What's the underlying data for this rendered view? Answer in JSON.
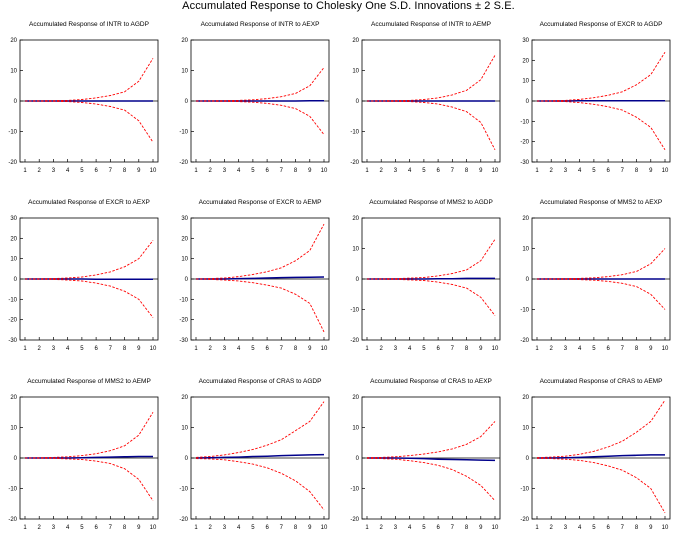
{
  "title": "Accumulated Response to Cholesky One S.D. Innovations ± 2 S.E.",
  "colors": {
    "response": "#00008b",
    "band": "#ff0000",
    "zero": "#000000",
    "frame": "#000000"
  },
  "chart_data": [
    {
      "type": "line",
      "title": "Accumulated Response of INTR to AGDP",
      "x": [
        1,
        2,
        3,
        4,
        5,
        6,
        7,
        8,
        9,
        10
      ],
      "ylim": [
        -20,
        20
      ],
      "yticks": [
        -20,
        -10,
        0,
        10,
        20
      ],
      "series": [
        {
          "role": "response",
          "values": [
            0,
            0,
            0,
            0,
            0,
            0,
            0,
            0,
            0,
            0
          ]
        },
        {
          "role": "upper",
          "values": [
            0,
            0.05,
            0.1,
            0.2,
            0.5,
            1.0,
            1.8,
            3.0,
            6.5,
            14
          ]
        },
        {
          "role": "lower",
          "values": [
            0,
            -0.05,
            -0.1,
            -0.2,
            -0.5,
            -1.0,
            -1.8,
            -3.0,
            -6.5,
            -13.5
          ]
        }
      ]
    },
    {
      "type": "line",
      "title": "Accumulated Response of INTR to AEXP",
      "x": [
        1,
        2,
        3,
        4,
        5,
        6,
        7,
        8,
        9,
        10
      ],
      "ylim": [
        -20,
        20
      ],
      "yticks": [
        -20,
        -10,
        0,
        10,
        20
      ],
      "series": [
        {
          "role": "response",
          "values": [
            0,
            0,
            0,
            0,
            0,
            0,
            0,
            0,
            0.1,
            0.1
          ]
        },
        {
          "role": "upper",
          "values": [
            0,
            0.05,
            0.1,
            0.2,
            0.4,
            0.8,
            1.4,
            2.5,
            5.0,
            11
          ]
        },
        {
          "role": "lower",
          "values": [
            0,
            -0.05,
            -0.1,
            -0.2,
            -0.4,
            -0.8,
            -1.4,
            -2.5,
            -5.0,
            -11
          ]
        }
      ]
    },
    {
      "type": "line",
      "title": "Accumulated Response of INTR to AEMP",
      "x": [
        1,
        2,
        3,
        4,
        5,
        6,
        7,
        8,
        9,
        10
      ],
      "ylim": [
        -20,
        20
      ],
      "yticks": [
        -20,
        -10,
        0,
        10,
        20
      ],
      "series": [
        {
          "role": "response",
          "values": [
            0,
            0,
            0,
            0,
            0,
            0,
            0,
            0,
            0,
            0
          ]
        },
        {
          "role": "upper",
          "values": [
            0,
            0.05,
            0.1,
            0.2,
            0.5,
            1.0,
            2.0,
            3.5,
            7.0,
            15
          ]
        },
        {
          "role": "lower",
          "values": [
            0,
            -0.05,
            -0.1,
            -0.2,
            -0.5,
            -1.0,
            -2.0,
            -3.5,
            -7.0,
            -16
          ]
        }
      ]
    },
    {
      "type": "line",
      "title": "Accumulated Response of EXCR to AGDP",
      "x": [
        1,
        2,
        3,
        4,
        5,
        6,
        7,
        8,
        9,
        10
      ],
      "ylim": [
        -30,
        30
      ],
      "yticks": [
        -30,
        -20,
        -10,
        0,
        10,
        20,
        30
      ],
      "series": [
        {
          "role": "response",
          "values": [
            0,
            0,
            0,
            0.1,
            0.1,
            0.1,
            0.1,
            0.1,
            0.1,
            0.1
          ]
        },
        {
          "role": "upper",
          "values": [
            0,
            0.1,
            0.3,
            0.8,
            1.6,
            2.8,
            4.5,
            8.0,
            13,
            24
          ]
        },
        {
          "role": "lower",
          "values": [
            0,
            -0.1,
            -0.3,
            -0.8,
            -1.6,
            -2.8,
            -4.5,
            -8.0,
            -13,
            -24
          ]
        }
      ]
    },
    {
      "type": "line",
      "title": "Accumulated Response of EXCR to AEXP",
      "x": [
        1,
        2,
        3,
        4,
        5,
        6,
        7,
        8,
        9,
        10
      ],
      "ylim": [
        -30,
        30
      ],
      "yticks": [
        -30,
        -20,
        -10,
        0,
        10,
        20,
        30
      ],
      "series": [
        {
          "role": "response",
          "values": [
            0,
            0,
            0,
            0,
            0,
            -0.1,
            -0.1,
            -0.1,
            -0.1,
            -0.1
          ]
        },
        {
          "role": "upper",
          "values": [
            0,
            0.1,
            0.2,
            0.5,
            1.0,
            2.0,
            3.5,
            6.0,
            10,
            19
          ]
        },
        {
          "role": "lower",
          "values": [
            0,
            -0.1,
            -0.2,
            -0.5,
            -1.0,
            -2.0,
            -3.5,
            -6.0,
            -10,
            -19
          ]
        }
      ]
    },
    {
      "type": "line",
      "title": "Accumulated Response of EXCR to AEMP",
      "x": [
        1,
        2,
        3,
        4,
        5,
        6,
        7,
        8,
        9,
        10
      ],
      "ylim": [
        -30,
        30
      ],
      "yticks": [
        -30,
        -20,
        -10,
        0,
        10,
        20,
        30
      ],
      "series": [
        {
          "role": "response",
          "values": [
            0,
            0,
            0,
            0.2,
            0.3,
            0.5,
            0.7,
            0.8,
            0.9,
            1.0
          ]
        },
        {
          "role": "upper",
          "values": [
            0,
            0.2,
            0.5,
            1.2,
            2.2,
            3.6,
            5.5,
            9.0,
            14,
            27
          ]
        },
        {
          "role": "lower",
          "values": [
            0,
            -0.2,
            -0.5,
            -1.0,
            -1.8,
            -3.0,
            -4.5,
            -7.5,
            -12,
            -26
          ]
        }
      ]
    },
    {
      "type": "line",
      "title": "Accumulated Response of MMS2 to AGDP",
      "x": [
        1,
        2,
        3,
        4,
        5,
        6,
        7,
        8,
        9,
        10
      ],
      "ylim": [
        -20,
        20
      ],
      "yticks": [
        -20,
        -10,
        0,
        10,
        20
      ],
      "series": [
        {
          "role": "response",
          "values": [
            0,
            0,
            0,
            0,
            0,
            0.1,
            0.1,
            0.2,
            0.2,
            0.2
          ]
        },
        {
          "role": "upper",
          "values": [
            0,
            0.05,
            0.1,
            0.3,
            0.5,
            1.0,
            1.8,
            3.0,
            6.0,
            13
          ]
        },
        {
          "role": "lower",
          "values": [
            0,
            -0.05,
            -0.1,
            -0.3,
            -0.5,
            -1.0,
            -1.8,
            -3.0,
            -6.0,
            -12
          ]
        }
      ]
    },
    {
      "type": "line",
      "title": "Accumulated Response of MMS2 to AEXP",
      "x": [
        1,
        2,
        3,
        4,
        5,
        6,
        7,
        8,
        9,
        10
      ],
      "ylim": [
        -20,
        20
      ],
      "yticks": [
        -20,
        -10,
        0,
        10,
        20
      ],
      "series": [
        {
          "role": "response",
          "values": [
            0,
            0,
            0,
            0,
            0,
            0,
            0,
            0,
            0,
            0
          ]
        },
        {
          "role": "upper",
          "values": [
            0,
            0.05,
            0.1,
            0.2,
            0.4,
            0.8,
            1.4,
            2.5,
            5.0,
            10
          ]
        },
        {
          "role": "lower",
          "values": [
            0,
            -0.05,
            -0.1,
            -0.2,
            -0.4,
            -0.8,
            -1.4,
            -2.5,
            -5.0,
            -10
          ]
        }
      ]
    },
    {
      "type": "line",
      "title": "Accumulated Response of MMS2 to AEMP",
      "x": [
        1,
        2,
        3,
        4,
        5,
        6,
        7,
        8,
        9,
        10
      ],
      "ylim": [
        -20,
        20
      ],
      "yticks": [
        -20,
        -10,
        0,
        10,
        20
      ],
      "series": [
        {
          "role": "response",
          "values": [
            0,
            0,
            0,
            0,
            0.1,
            0.2,
            0.3,
            0.4,
            0.5,
            0.5
          ]
        },
        {
          "role": "upper",
          "values": [
            0,
            0.05,
            0.2,
            0.4,
            0.8,
            1.4,
            2.4,
            4.0,
            7.5,
            15
          ]
        },
        {
          "role": "lower",
          "values": [
            0,
            -0.05,
            -0.1,
            -0.3,
            -0.5,
            -1.0,
            -1.8,
            -3.5,
            -7.0,
            -14
          ]
        }
      ]
    },
    {
      "type": "line",
      "title": "Accumulated Response of CRAS to AGDP",
      "x": [
        1,
        2,
        3,
        4,
        5,
        6,
        7,
        8,
        9,
        10
      ],
      "ylim": [
        -20,
        20
      ],
      "yticks": [
        -20,
        -10,
        0,
        10,
        20
      ],
      "series": [
        {
          "role": "response",
          "values": [
            0,
            0.1,
            0.2,
            0.3,
            0.5,
            0.6,
            0.8,
            0.9,
            1.0,
            1.1
          ]
        },
        {
          "role": "upper",
          "values": [
            0.2,
            0.5,
            1.0,
            1.8,
            2.8,
            4.2,
            6.0,
            9.0,
            12,
            18.5
          ]
        },
        {
          "role": "lower",
          "values": [
            -0.2,
            -0.3,
            -0.6,
            -1.2,
            -2.0,
            -3.2,
            -5.0,
            -7.5,
            -11,
            -17
          ]
        }
      ]
    },
    {
      "type": "line",
      "title": "Accumulated Response of CRAS to AEXP",
      "x": [
        1,
        2,
        3,
        4,
        5,
        6,
        7,
        8,
        9,
        10
      ],
      "ylim": [
        -20,
        20
      ],
      "yticks": [
        -20,
        -10,
        0,
        10,
        20
      ],
      "series": [
        {
          "role": "response",
          "values": [
            0,
            0,
            0,
            -0.1,
            -0.2,
            -0.4,
            -0.5,
            -0.6,
            -0.7,
            -0.8
          ]
        },
        {
          "role": "upper",
          "values": [
            0.1,
            0.2,
            0.4,
            0.8,
            1.3,
            2.0,
            3.0,
            4.5,
            7.0,
            12
          ]
        },
        {
          "role": "lower",
          "values": [
            -0.1,
            -0.2,
            -0.4,
            -0.9,
            -1.5,
            -2.4,
            -3.8,
            -6.0,
            -9.0,
            -14
          ]
        }
      ]
    },
    {
      "type": "line",
      "title": "Accumulated Response of CRAS to AEMP",
      "x": [
        1,
        2,
        3,
        4,
        5,
        6,
        7,
        8,
        9,
        10
      ],
      "ylim": [
        -20,
        20
      ],
      "yticks": [
        -20,
        -10,
        0,
        10,
        20
      ],
      "series": [
        {
          "role": "response",
          "values": [
            0,
            0,
            0.1,
            0.2,
            0.4,
            0.6,
            0.8,
            0.9,
            1.0,
            1.0
          ]
        },
        {
          "role": "upper",
          "values": [
            0.1,
            0.3,
            0.6,
            1.2,
            2.2,
            3.6,
            5.5,
            8.5,
            12,
            19
          ]
        },
        {
          "role": "lower",
          "values": [
            -0.1,
            -0.2,
            -0.4,
            -0.8,
            -1.5,
            -2.6,
            -4.0,
            -6.5,
            -10,
            -18
          ]
        }
      ]
    }
  ]
}
